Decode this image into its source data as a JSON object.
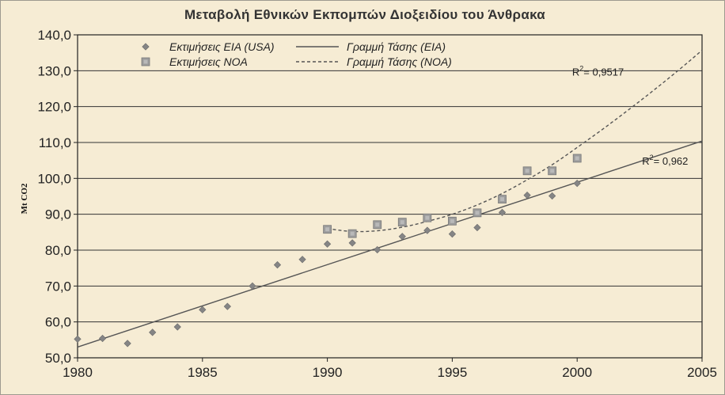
{
  "chart_data": {
    "type": "scatter",
    "title": "Μεταβολή Εθνικών Εκπομπών Διοξειδίου του Άνθρακα",
    "ylabel": "Mt CO2",
    "xlim": [
      1980,
      2005
    ],
    "ylim": [
      50,
      140
    ],
    "x_ticks": [
      1980,
      1985,
      1990,
      1995,
      2000,
      2005
    ],
    "x_tick_labels": [
      "1980",
      "1985",
      "1990",
      "1995",
      "2000",
      "2005"
    ],
    "y_ticks": [
      50,
      60,
      70,
      80,
      90,
      100,
      110,
      120,
      130,
      140
    ],
    "y_tick_labels": [
      "50,0",
      "60,0",
      "70,0",
      "80,0",
      "90,0",
      "100,0",
      "110,0",
      "120,0",
      "130,0",
      "140,0"
    ],
    "grid": "horizontal",
    "legend_position": "top",
    "series": [
      {
        "name": "Εκτιμήσεις EIA (USA)",
        "marker": "diamond",
        "color": "#858585",
        "x": [
          1980,
          1981,
          1982,
          1983,
          1984,
          1985,
          1986,
          1987,
          1988,
          1989,
          1990,
          1991,
          1992,
          1993,
          1994,
          1995,
          1996,
          1997,
          1998,
          1999,
          2000
        ],
        "y": [
          55.2,
          55.4,
          54.0,
          57.1,
          58.6,
          63.4,
          64.3,
          70.0,
          75.9,
          77.4,
          81.7,
          82.0,
          80.1,
          83.8,
          85.5,
          84.5,
          86.3,
          90.5,
          95.3,
          95.1,
          98.6
        ]
      },
      {
        "name": "Εκτιμήσεις NOA",
        "marker": "square",
        "color": "#9c9c9c",
        "x": [
          1990,
          1991,
          1992,
          1993,
          1994,
          1995,
          1996,
          1997,
          1998,
          1999,
          2000
        ],
        "y": [
          85.8,
          84.6,
          87.1,
          87.8,
          89.0,
          88.1,
          90.4,
          94.2,
          102.1,
          102.1,
          105.6
        ]
      },
      {
        "name": "Γραμμή Τάσης (EIA)",
        "line_style": "solid",
        "color": "#555555",
        "x": [
          1980,
          2005
        ],
        "y": [
          53.0,
          110.4
        ]
      },
      {
        "name": "Γραμμή Τάσης (NOA)",
        "line_style": "dashed",
        "color": "#555555",
        "x": [
          1990,
          1991,
          1992,
          1993,
          1994,
          1995,
          1996,
          1997,
          1998,
          1999,
          2000,
          2001,
          2002,
          2003,
          2004,
          2005
        ],
        "y": [
          86.0,
          85.2,
          85.4,
          86.4,
          88.0,
          90.0,
          92.6,
          95.8,
          99.6,
          103.8,
          108.6,
          113.6,
          118.8,
          124.2,
          129.8,
          135.7
        ]
      }
    ],
    "annotations": [
      {
        "label": "R",
        "sup": "2",
        "value": "= 0,9517",
        "at_x": 1999.8,
        "at_y": 128.6
      },
      {
        "label": "R",
        "sup": "2",
        "value": "= 0,962",
        "at_x": 2002.6,
        "at_y": 103.8
      }
    ]
  }
}
